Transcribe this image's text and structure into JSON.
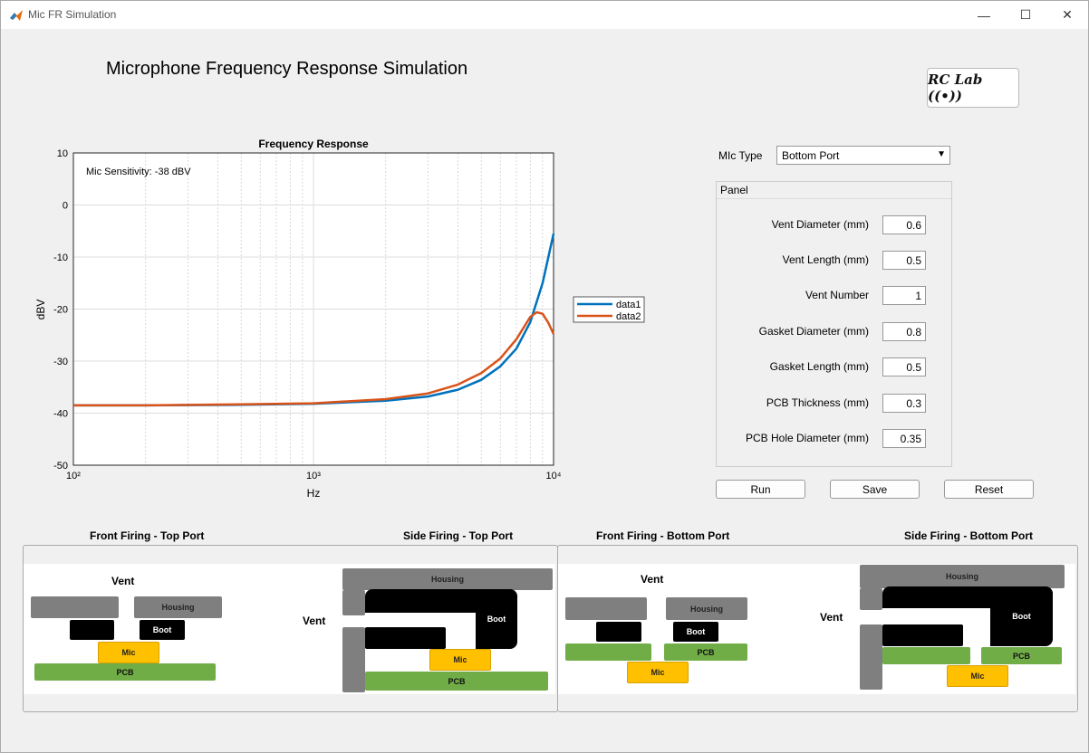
{
  "window": {
    "title": "Mic FR Simulation"
  },
  "header": {
    "title": "Microphone Frequency Response Simulation",
    "logo_text": "RC Lab ((•))"
  },
  "mic_type": {
    "label": "MIc Type",
    "value": "Bottom Port"
  },
  "panel": {
    "title": "Panel",
    "fields": [
      {
        "label": "Vent Diameter (mm)",
        "value": "0.6"
      },
      {
        "label": "Vent Length (mm)",
        "value": "0.5"
      },
      {
        "label": "Vent Number",
        "value": "1"
      },
      {
        "label": "Gasket Diameter (mm)",
        "value": "0.8"
      },
      {
        "label": "Gasket Length (mm)",
        "value": "0.5"
      },
      {
        "label": "PCB Thickness (mm)",
        "value": "0.3"
      },
      {
        "label": "PCB Hole Diameter (mm)",
        "value": "0.35"
      }
    ]
  },
  "buttons": {
    "run": "Run",
    "save": "Save",
    "reset": "Reset"
  },
  "chart_data": {
    "type": "line",
    "title": "Frequency Response",
    "xlabel": "Hz",
    "ylabel": "dBV",
    "xscale": "log",
    "xlim": [
      100,
      10000
    ],
    "ylim": [
      -50,
      10
    ],
    "yticks": [
      "10",
      "0",
      "-10",
      "-20",
      "-30",
      "-40",
      "-50"
    ],
    "xticks": [
      "10²",
      "10³",
      "10⁴"
    ],
    "annotation": "Mic Sensitivity: -38 dBV",
    "legend_position": "outside-right",
    "grid": true,
    "series": [
      {
        "name": "data1",
        "color": "#0072BD",
        "x": [
          100,
          200,
          500,
          1000,
          2000,
          3000,
          4000,
          5000,
          6000,
          7000,
          8000,
          9000,
          10000
        ],
        "y": [
          -38.5,
          -38.5,
          -38.4,
          -38.2,
          -37.6,
          -36.8,
          -35.5,
          -33.6,
          -31.0,
          -27.6,
          -22.5,
          -15.0,
          -5.5
        ]
      },
      {
        "name": "data2",
        "color": "#D95319",
        "x": [
          100,
          200,
          500,
          1000,
          2000,
          3000,
          4000,
          5000,
          6000,
          7000,
          8000,
          8500,
          9000,
          9500,
          10000
        ],
        "y": [
          -38.5,
          -38.5,
          -38.3,
          -38.1,
          -37.3,
          -36.2,
          -34.5,
          -32.3,
          -29.5,
          -25.8,
          -21.5,
          -20.6,
          -20.9,
          -22.6,
          -24.8
        ]
      }
    ]
  },
  "diagrams": {
    "front_top": {
      "title": "Front Firing - Top Port",
      "vent": "Vent",
      "housing": "Housing",
      "boot": "Boot",
      "mic": "Mic",
      "pcb": "PCB"
    },
    "side_top": {
      "title": "Side Firing - Top Port",
      "vent": "Vent",
      "housing": "Housing",
      "boot": "Boot",
      "mic": "Mic",
      "pcb": "PCB"
    },
    "front_bottom": {
      "title": "Front Firing - Bottom Port",
      "vent": "Vent",
      "housing": "Housing",
      "boot": "Boot",
      "mic": "Mic",
      "pcb": "PCB"
    },
    "side_bottom": {
      "title": "Side Firing - Bottom Port",
      "vent": "Vent",
      "housing": "Housing",
      "boot": "Boot",
      "mic": "Mic",
      "pcb": "PCB"
    }
  }
}
